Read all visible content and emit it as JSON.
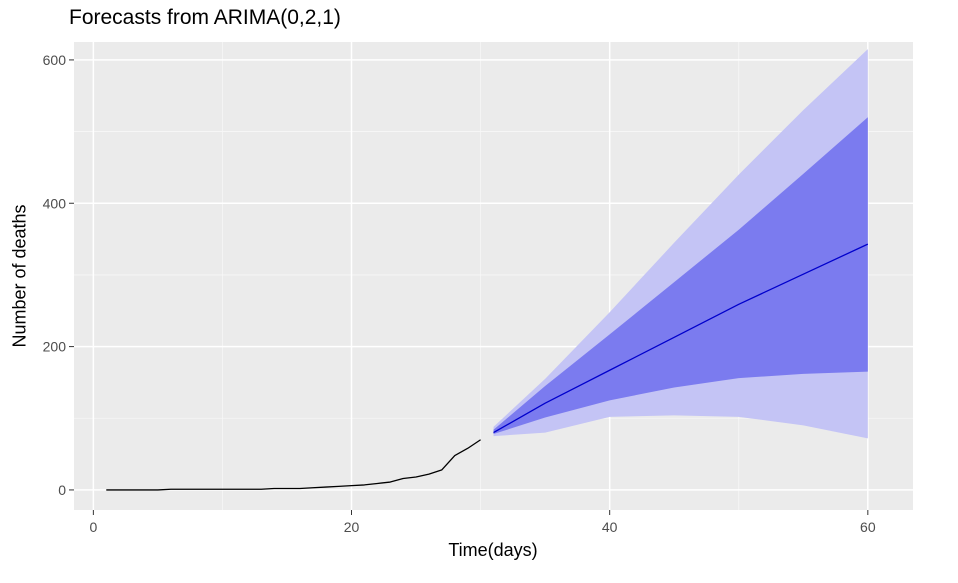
{
  "chart_data": {
    "type": "line",
    "title": "Forecasts from ARIMA(0,2,1)",
    "xlabel": "Time(days)",
    "ylabel": "Number of deaths",
    "xlim": [
      -1.5,
      63.5
    ],
    "ylim": [
      -28,
      625
    ],
    "x_ticks": [
      0,
      20,
      40,
      60
    ],
    "y_ticks": [
      0,
      200,
      400,
      600
    ],
    "grid": true,
    "background": "#EBEBEB",
    "colors": {
      "observed": "#000000",
      "forecast_mean": "#0000CC",
      "band_80": "#7B7BEF",
      "band_95": "#C4C4F5"
    },
    "series": [
      {
        "x": [
          1,
          2,
          3,
          4,
          5,
          6,
          7,
          8,
          9,
          10,
          11,
          12,
          13,
          14,
          15,
          16,
          17,
          18,
          19,
          20,
          21,
          22,
          23,
          24,
          25,
          26,
          27,
          28,
          29,
          30
        ],
        "values": [
          0,
          0,
          0,
          0,
          0,
          1,
          1,
          1,
          1,
          1,
          1,
          1,
          1,
          2,
          2,
          2,
          3,
          4,
          5,
          6,
          7,
          9,
          11,
          16,
          18,
          22,
          28,
          48,
          58,
          70
        ]
      },
      {
        "x": [
          31,
          35,
          40,
          45,
          50,
          55,
          60
        ],
        "values": [
          80,
          121,
          167,
          213,
          259,
          301,
          343
        ]
      }
    ],
    "bands": [
      {
        "x": [
          31,
          35,
          40,
          45,
          50,
          55,
          60
        ],
        "lower": [
          75,
          80,
          102,
          104,
          102,
          90,
          72
        ],
        "upper": [
          88,
          155,
          248,
          345,
          440,
          530,
          615
        ]
      },
      {
        "x": [
          31,
          35,
          40,
          45,
          50,
          55,
          60
        ],
        "lower": [
          78,
          101,
          125,
          143,
          156,
          162,
          165
        ],
        "upper": [
          84,
          145,
          217,
          290,
          363,
          441,
          520
        ]
      }
    ]
  }
}
